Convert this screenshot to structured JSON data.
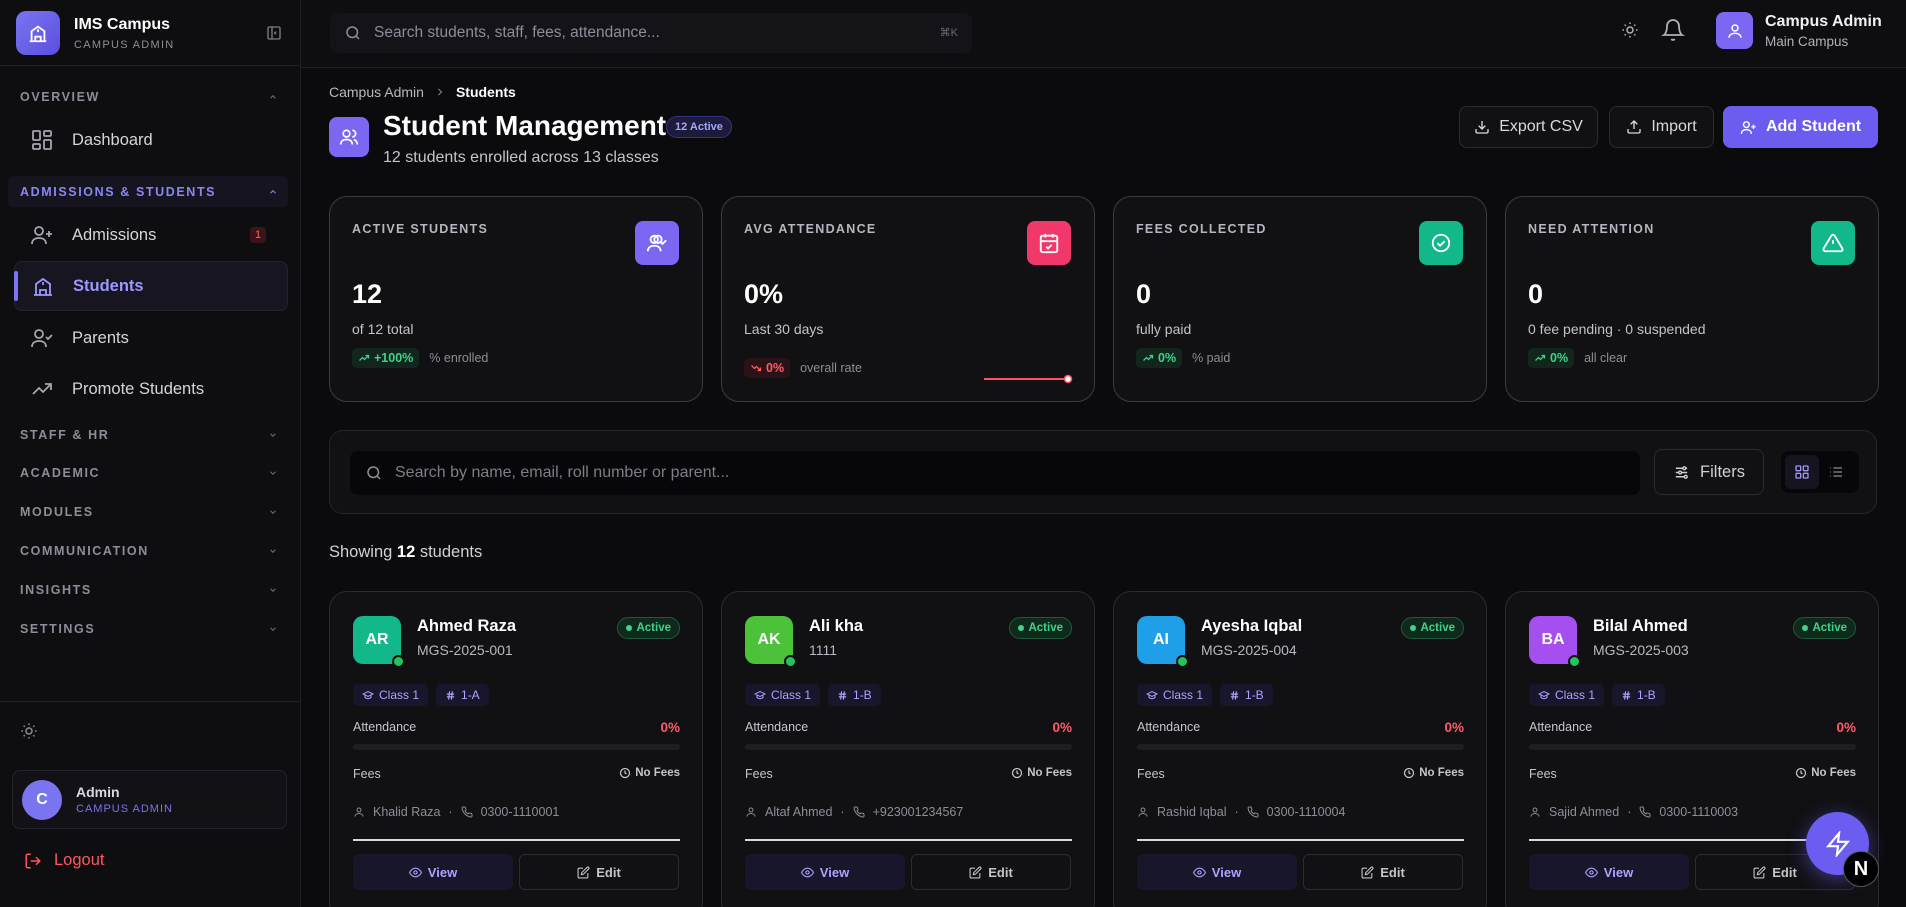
{
  "brand": {
    "name": "IMS Campus",
    "sub": "CAMPUS ADMIN"
  },
  "sidebar": {
    "sections": {
      "overview": "OVERVIEW",
      "admissions": "ADMISSIONS & STUDENTS",
      "staff": "STAFF & HR",
      "academic": "ACADEMIC",
      "modules": "MODULES",
      "communication": "COMMUNICATION",
      "insights": "INSIGHTS",
      "settings": "SETTINGS"
    },
    "items": {
      "dashboard": "Dashboard",
      "admissions": "Admissions",
      "admissions_badge": "1",
      "students": "Students",
      "parents": "Parents",
      "promote": "Promote Students"
    },
    "user": {
      "initial": "C",
      "name": "Admin",
      "role": "CAMPUS ADMIN"
    },
    "logout": "Logout"
  },
  "topbar": {
    "search_placeholder": "Search students, staff, fees, attendance...",
    "shortcut": "⌘K",
    "user_name": "Campus Admin",
    "user_campus": "Main Campus"
  },
  "breadcrumb": {
    "parent": "Campus Admin",
    "current": "Students"
  },
  "header": {
    "title": "Student Management",
    "badge": "12 Active",
    "subtitle": "12 students enrolled across 13 classes",
    "export": "Export CSV",
    "import": "Import",
    "add": "Add Student"
  },
  "stats": [
    {
      "label": "ACTIVE STUDENTS",
      "value": "12",
      "desc": "of 12 total",
      "trend": "+100%",
      "trend_dir": "up",
      "trend_note": "% enrolled",
      "color": "#7b67f2",
      "icon": "user-check-icon"
    },
    {
      "label": "AVG ATTENDANCE",
      "value": "0%",
      "desc": "Last 30 days",
      "trend": "0%",
      "trend_dir": "down",
      "trend_note": "overall rate",
      "color": "#f0386b",
      "icon": "calendar-check-icon"
    },
    {
      "label": "FEES COLLECTED",
      "value": "0",
      "desc": "fully paid",
      "trend": "0%",
      "trend_dir": "up",
      "trend_note": "% paid",
      "color": "#12b88a",
      "icon": "check-circle-icon"
    },
    {
      "label": "NEED ATTENTION",
      "value": "0",
      "desc": "0 fee pending · 0 suspended",
      "trend": "0%",
      "trend_dir": "up",
      "trend_note": "all clear",
      "color": "#12b88a",
      "icon": "alert-triangle-icon"
    }
  ],
  "filters": {
    "search_placeholder": "Search by name, email, roll number or parent...",
    "filters_label": "Filters"
  },
  "showing": {
    "prefix": "Showing",
    "count": "12",
    "suffix": "students"
  },
  "students": [
    {
      "initials": "AR",
      "name": "Ahmed Raza",
      "roll": "MGS-2025-001",
      "status": "Active",
      "class": "Class 1",
      "section": "1-A",
      "attendance_label": "Attendance",
      "attendance": "0%",
      "fees_label": "Fees",
      "fees": "No Fees",
      "parent": "Khalid Raza",
      "phone": "0300-1110001",
      "view": "View",
      "edit": "Edit",
      "color": "#12b88a"
    },
    {
      "initials": "AK",
      "name": "Ali kha",
      "roll": "1111",
      "status": "Active",
      "class": "Class 1",
      "section": "1-B",
      "attendance_label": "Attendance",
      "attendance": "0%",
      "fees_label": "Fees",
      "fees": "No Fees",
      "parent": "Altaf Ahmed",
      "phone": "+923001234567",
      "view": "View",
      "edit": "Edit",
      "color": "#4cc23a"
    },
    {
      "initials": "AI",
      "name": "Ayesha Iqbal",
      "roll": "MGS-2025-004",
      "status": "Active",
      "class": "Class 1",
      "section": "1-B",
      "attendance_label": "Attendance",
      "attendance": "0%",
      "fees_label": "Fees",
      "fees": "No Fees",
      "parent": "Rashid Iqbal",
      "phone": "0300-1110004",
      "view": "View",
      "edit": "Edit",
      "color": "#1e9fe8"
    },
    {
      "initials": "BA",
      "name": "Bilal Ahmed",
      "roll": "MGS-2025-003",
      "status": "Active",
      "class": "Class 1",
      "section": "1-B",
      "attendance_label": "Attendance",
      "attendance": "0%",
      "fees_label": "Fees",
      "fees": "No Fees",
      "parent": "Sajid Ahmed",
      "phone": "0300-1110003",
      "view": "View",
      "edit": "Edit",
      "color": "#a64ff0"
    }
  ],
  "fab_letter": "N"
}
